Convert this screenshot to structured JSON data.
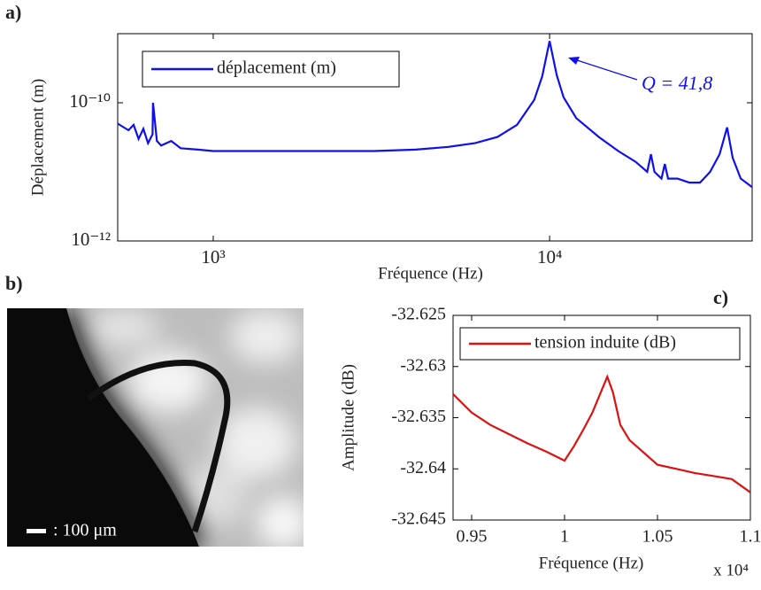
{
  "panels": [
    "a)",
    "b)",
    "c)"
  ],
  "image_caption": ": 100 μm",
  "chart_data": [
    {
      "type": "line",
      "xscale": "log",
      "yscale": "log",
      "xlabel": "Fréquence (Hz)",
      "ylabel": "Déplacement (m)",
      "xlim": [
        520,
        40000
      ],
      "ylim": [
        1e-12,
        1e-09
      ],
      "xticks": [
        {
          "value": 1000,
          "label": "10³"
        },
        {
          "value": 10000,
          "label": "10⁴"
        }
      ],
      "yticks": [
        {
          "value": 1e-12,
          "label": "10⁻¹²"
        },
        {
          "value": 1e-10,
          "label": "10⁻¹⁰"
        }
      ],
      "legend": "upper left",
      "annotation": "Q = 41,8",
      "x": [
        520,
        560,
        580,
        600,
        620,
        640,
        660,
        662,
        680,
        700,
        750,
        800,
        900,
        1000,
        1500,
        2000,
        3000,
        4000,
        5000,
        6000,
        7000,
        8000,
        9000,
        9500,
        10000,
        10500,
        11000,
        12000,
        14000,
        16000,
        18000,
        19500,
        20000,
        20500,
        21500,
        22000,
        22500,
        24000,
        26000,
        28000,
        30000,
        32000,
        33700,
        35000,
        37000,
        40000
      ],
      "series": [
        {
          "name": "déplacement (m)",
          "color": "#1010ee",
          "values": [
            5e-11,
            4e-11,
            4.8e-11,
            3e-11,
            4.2e-11,
            2.6e-11,
            3.5e-11,
            1e-10,
            2.8e-11,
            2.4e-11,
            2.8e-11,
            2.2e-11,
            2.1e-11,
            2e-11,
            2e-11,
            2e-11,
            2e-11,
            2.1e-11,
            2.3e-11,
            2.6e-11,
            3.2e-11,
            4.8e-11,
            1.1e-10,
            2.4e-10,
            7.8e-10,
            2.5e-10,
            1.2e-10,
            6e-11,
            3.2e-11,
            2e-11,
            1.4e-11,
            1e-11,
            1.8e-11,
            1e-11,
            8e-12,
            1.3e-11,
            8e-12,
            8e-12,
            7e-12,
            7e-12,
            1e-11,
            1.8e-11,
            4.4e-11,
            1.6e-11,
            8e-12,
            6e-12
          ]
        }
      ]
    },
    {
      "type": "line",
      "xlabel": "Fréquence (Hz)",
      "ylabel": "Amplitude (dB)",
      "x_multiplier": "x 10⁴",
      "xlim": [
        9400,
        11000
      ],
      "ylim": [
        -32.645,
        -32.625
      ],
      "xticks": [
        {
          "value": 9500,
          "label": "0.95"
        },
        {
          "value": 10000,
          "label": "1"
        },
        {
          "value": 10500,
          "label": "1.05"
        },
        {
          "value": 11000,
          "label": "1.1"
        }
      ],
      "yticks": [
        -32.645,
        -32.64,
        -32.635,
        -32.63,
        -32.625
      ],
      "legend": "upper left",
      "x": [
        9400,
        9500,
        9600,
        9700,
        9800,
        9900,
        10000,
        10050,
        10100,
        10150,
        10200,
        10230,
        10260,
        10300,
        10350,
        10400,
        10500,
        10600,
        10700,
        10800,
        10900,
        11000
      ],
      "series": [
        {
          "name": "tension induite (dB)",
          "color": "#dd1111",
          "values": [
            -32.6327,
            -32.6345,
            -32.6357,
            -32.6366,
            -32.6375,
            -32.6383,
            -32.6392,
            -32.6378,
            -32.6362,
            -32.6345,
            -32.6323,
            -32.631,
            -32.6325,
            -32.6357,
            -32.6372,
            -32.638,
            -32.6396,
            -32.64,
            -32.6404,
            -32.6407,
            -32.641,
            -32.6423
          ]
        }
      ]
    }
  ]
}
